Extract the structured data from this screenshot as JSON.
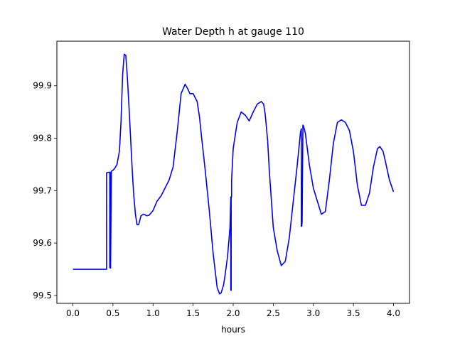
{
  "chart_data": {
    "type": "line",
    "title": "Water Depth h at gauge 110",
    "xlabel": "hours",
    "ylabel": "",
    "xlim": [
      -0.2,
      4.2
    ],
    "ylim": [
      99.485,
      99.985
    ],
    "xticks": [
      0.0,
      0.5,
      1.0,
      1.5,
      2.0,
      2.5,
      3.0,
      3.5,
      4.0
    ],
    "xtick_labels": [
      "0.0",
      "0.5",
      "1.0",
      "1.5",
      "2.0",
      "2.5",
      "3.0",
      "3.5",
      "4.0"
    ],
    "yticks": [
      99.5,
      99.6,
      99.7,
      99.8,
      99.9
    ],
    "ytick_labels": [
      "99.5",
      "99.6",
      "99.7",
      "99.8",
      "99.9"
    ],
    "grid": false,
    "line_color": "#0000ff",
    "series": [
      {
        "x": [
          0.0,
          0.1,
          0.2,
          0.3,
          0.4,
          0.42,
          0.42,
          0.45,
          0.46,
          0.46,
          0.465,
          0.465,
          0.47,
          0.47,
          0.48,
          0.5,
          0.52,
          0.55,
          0.58,
          0.6,
          0.62,
          0.64,
          0.66,
          0.68,
          0.7,
          0.72,
          0.74,
          0.76,
          0.78,
          0.8,
          0.82,
          0.85,
          0.88,
          0.9,
          0.92,
          0.95,
          1.0,
          1.05,
          1.1,
          1.15,
          1.2,
          1.25,
          1.3,
          1.35,
          1.4,
          1.43,
          1.46,
          1.5,
          1.55,
          1.58,
          1.6,
          1.65,
          1.7,
          1.75,
          1.8,
          1.83,
          1.85,
          1.88,
          1.9,
          1.93,
          1.96,
          1.97,
          1.97,
          1.975,
          1.975,
          1.98,
          1.98,
          2.0,
          2.05,
          2.1,
          2.15,
          2.2,
          2.25,
          2.3,
          2.35,
          2.38,
          2.4,
          2.43,
          2.45,
          2.5,
          2.55,
          2.6,
          2.65,
          2.7,
          2.75,
          2.8,
          2.84,
          2.85,
          2.85,
          2.855,
          2.86,
          2.87,
          2.87,
          2.88,
          2.9,
          2.95,
          3.0,
          3.05,
          3.1,
          3.15,
          3.2,
          3.25,
          3.3,
          3.35,
          3.4,
          3.45,
          3.5,
          3.55,
          3.6,
          3.65,
          3.7,
          3.75,
          3.8,
          3.83,
          3.87,
          3.9,
          3.95,
          4.0
        ],
        "y": [
          99.55,
          99.55,
          99.55,
          99.55,
          99.55,
          99.55,
          99.734,
          99.735,
          99.735,
          99.553,
          99.553,
          99.735,
          99.735,
          99.552,
          99.737,
          99.739,
          99.742,
          99.75,
          99.775,
          99.83,
          99.92,
          99.96,
          99.958,
          99.915,
          99.86,
          99.8,
          99.74,
          99.69,
          99.655,
          99.635,
          99.635,
          99.652,
          99.655,
          99.654,
          99.652,
          99.653,
          99.662,
          99.68,
          99.69,
          99.705,
          99.72,
          99.745,
          99.81,
          99.885,
          99.903,
          99.895,
          99.885,
          99.885,
          99.87,
          99.84,
          99.81,
          99.74,
          99.665,
          99.58,
          99.515,
          99.503,
          99.505,
          99.52,
          99.54,
          99.575,
          99.63,
          99.688,
          99.51,
          99.51,
          99.685,
          99.69,
          99.72,
          99.78,
          99.83,
          99.85,
          99.844,
          99.833,
          99.85,
          99.865,
          99.87,
          99.865,
          99.845,
          99.795,
          99.74,
          99.63,
          99.585,
          99.557,
          99.565,
          99.61,
          99.68,
          99.75,
          99.812,
          99.818,
          99.632,
          99.632,
          99.64,
          99.822,
          99.825,
          99.822,
          99.81,
          99.75,
          99.705,
          99.68,
          99.655,
          99.66,
          99.72,
          99.79,
          99.83,
          99.835,
          99.83,
          99.815,
          99.775,
          99.71,
          99.672,
          99.672,
          99.695,
          99.745,
          99.78,
          99.784,
          99.775,
          99.755,
          99.72,
          99.698
        ]
      }
    ]
  }
}
